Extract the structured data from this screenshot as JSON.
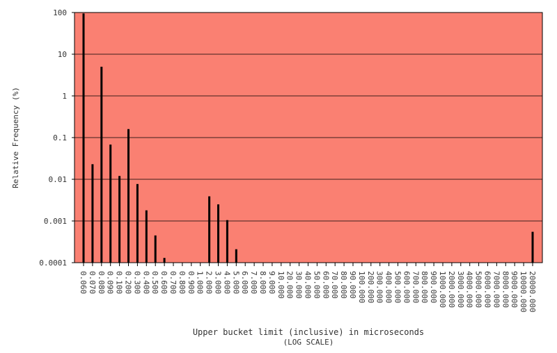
{
  "chart_data": {
    "type": "bar",
    "title": "",
    "xlabel": "Upper bucket limit (inclusive) in microseconds",
    "xlabel_note": "(LOG SCALE)",
    "ylabel": "Relative Frequency (%)",
    "y_scale": "log",
    "ylim": [
      0.0001,
      100
    ],
    "y_ticks": [
      "100",
      "10",
      "1",
      "0.1",
      "0.01",
      "0.001",
      "0.0001"
    ],
    "y_tick_values": [
      100,
      10,
      1,
      0.1,
      0.01,
      0.001,
      0.0001
    ],
    "grid": "horizontal",
    "legend": "none",
    "categories": [
      "0.060",
      "0.070",
      "0.080",
      "0.090",
      "0.100",
      "0.200",
      "0.300",
      "0.400",
      "0.500",
      "0.600",
      "0.700",
      "0.800",
      "0.900",
      "1.000",
      "2.000",
      "3.000",
      "4.000",
      "5.000",
      "6.000",
      "7.000",
      "8.000",
      "9.000",
      "10.000",
      "20.000",
      "30.000",
      "40.000",
      "50.000",
      "60.000",
      "70.000",
      "80.000",
      "90.000",
      "100.000",
      "200.000",
      "300.000",
      "400.000",
      "500.000",
      "600.000",
      "700.000",
      "800.000",
      "900.000",
      "1000.000",
      "2000.000",
      "3000.000",
      "4000.000",
      "5000.000",
      "6000.000",
      "7000.000",
      "8000.000",
      "9000.000",
      "10000.000",
      "20000.000"
    ],
    "values": [
      95,
      0.023,
      5,
      0.068,
      0.012,
      0.16,
      0.0077,
      0.0018,
      0.00045,
      0.00013,
      null,
      null,
      null,
      null,
      0.0039,
      0.0025,
      0.00105,
      0.00021,
      null,
      null,
      null,
      null,
      null,
      null,
      null,
      null,
      null,
      null,
      null,
      null,
      null,
      null,
      null,
      null,
      null,
      null,
      null,
      null,
      null,
      null,
      null,
      null,
      null,
      null,
      null,
      null,
      null,
      null,
      null,
      null,
      0.00055
    ],
    "colors": {
      "plot_background": "#fa8072",
      "bar": "#000000",
      "grid": "#000000",
      "frame": "#000000"
    }
  }
}
